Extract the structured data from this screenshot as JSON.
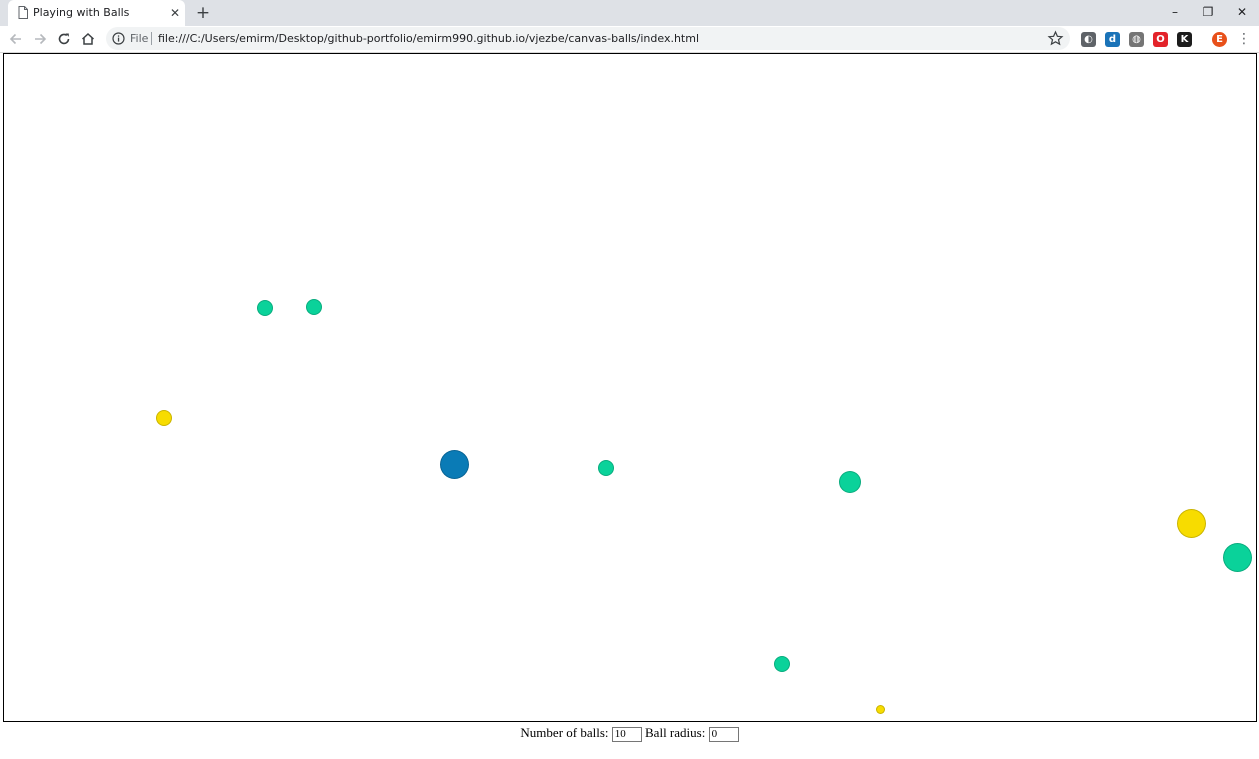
{
  "browser": {
    "tab": {
      "title": "Playing with Balls",
      "close_symbol": "✕"
    },
    "new_tab_symbol": "+",
    "window_controls": {
      "minimize": "–",
      "restore": "❐",
      "close": "✕"
    },
    "toolbar": {
      "scheme_label": "File",
      "url": "file:///C:/Users/emirm/Desktop/github-portfolio/emirm990.github.io/vjezbe/canvas-balls/index.html",
      "menu_symbol": "⋮"
    },
    "extensions": [
      {
        "name": "ext-1-icon",
        "glyph": "◐",
        "color": "#5f6368"
      },
      {
        "name": "ext-d-icon",
        "glyph": "d",
        "color": "#1a73b8"
      },
      {
        "name": "ext-globe-icon",
        "glyph": "◍",
        "color": "#757575"
      },
      {
        "name": "ext-opera-icon",
        "glyph": "O",
        "color": "#e3232a"
      },
      {
        "name": "ext-k-icon",
        "glyph": "K",
        "color": "#1c1c1c"
      },
      {
        "name": "profile-avatar",
        "glyph": "E",
        "color": "#e8501a"
      }
    ]
  },
  "page": {
    "colors": {
      "green": "#0ad29a",
      "yellow": "#f7dc00",
      "blue": "#0a7bb6"
    },
    "balls": [
      {
        "color": "green",
        "size": "small"
      },
      {
        "color": "green",
        "size": "small"
      },
      {
        "color": "yellow",
        "size": "small"
      },
      {
        "color": "blue",
        "size": "large"
      },
      {
        "color": "green",
        "size": "small"
      },
      {
        "color": "green",
        "size": "medium"
      },
      {
        "color": "yellow",
        "size": "large"
      },
      {
        "color": "green",
        "size": "large"
      },
      {
        "color": "green",
        "size": "small"
      },
      {
        "color": "yellow",
        "size": "tiny"
      }
    ],
    "controls": {
      "balls_label": "Number of balls:",
      "balls_value": "10",
      "radius_label": "Ball radius:",
      "radius_value": "0"
    }
  }
}
